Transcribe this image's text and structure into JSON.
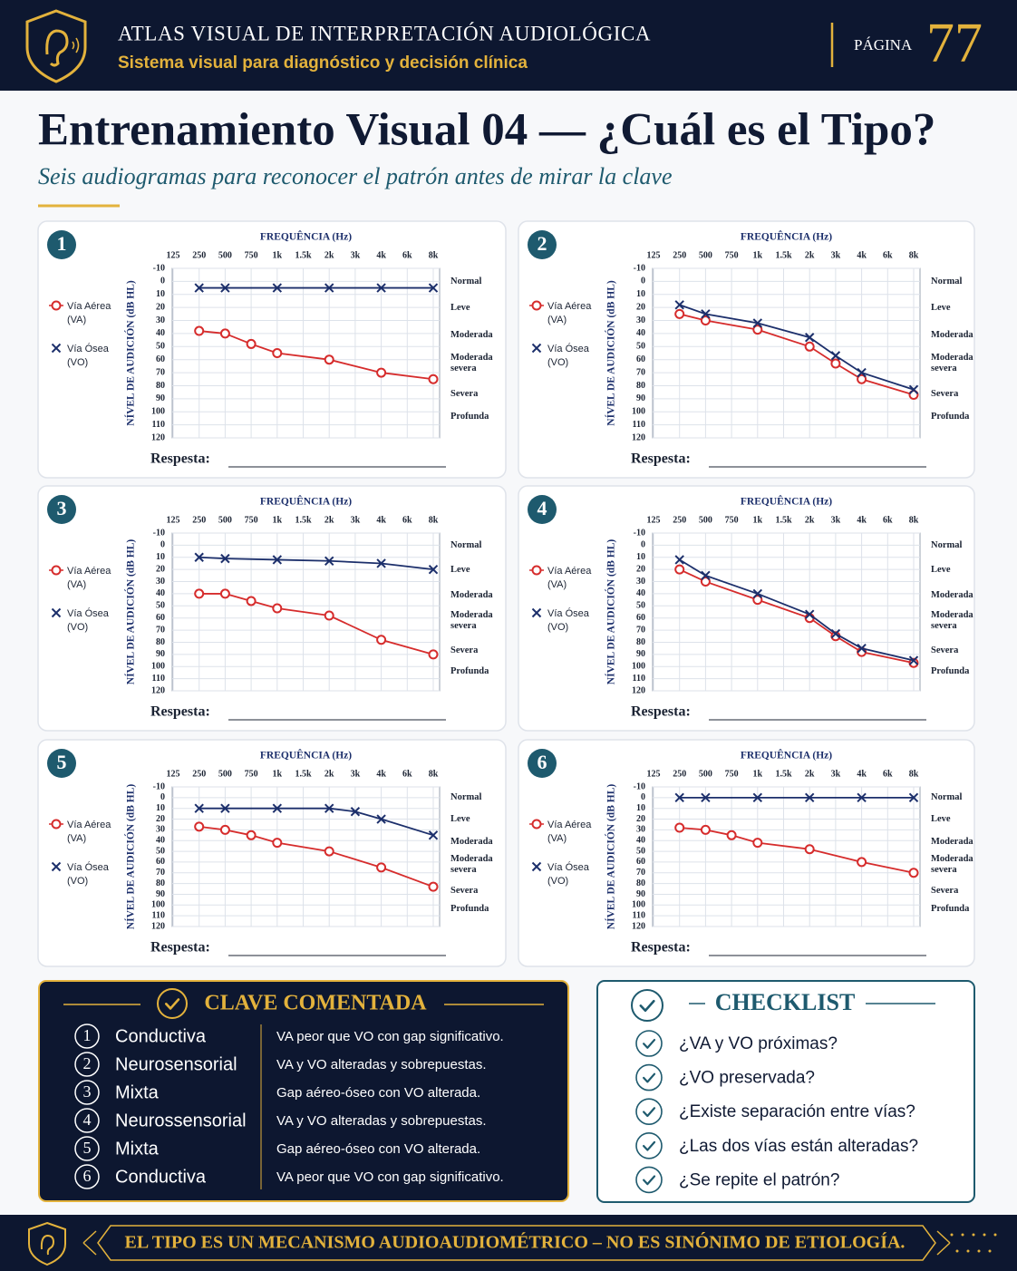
{
  "header": {
    "title": "ATLAS VISUAL DE INTERPRETACIÓN AUDIOLÓGICA",
    "subtitle": "Sistema visual para diagnóstico y decisión clínica",
    "page_label": "PÁGINA",
    "page_number": "77"
  },
  "main": {
    "title": "Entrenamiento Visual 04 — ¿Cuál es el Tipo?",
    "subtitle": "Seis audiogramas para reconocer el patrón antes de mirar la clave"
  },
  "audiogram": {
    "xlabel": "FREQUÊNCIA (Hz)",
    "ylabel": "NÍVEL DE AUDICIÓN (dB HL)",
    "xlim": [
      125,
      8000
    ],
    "xticks": [
      125,
      250,
      500,
      750,
      {
        "value": 1000,
        "label": "1k"
      },
      {
        "value": 1500,
        "label": "1.5k"
      },
      {
        "value": 2000,
        "label": "2k"
      },
      {
        "value": 3000,
        "label": "3k"
      },
      {
        "value": 4000,
        "label": "4k"
      },
      {
        "value": 6000,
        "label": "6k"
      },
      {
        "value": 8000,
        "label": "8k"
      }
    ],
    "ylim": [
      -10,
      120
    ],
    "yticks": [
      -10,
      0,
      10,
      20,
      30,
      40,
      50,
      60,
      70,
      80,
      90,
      100,
      110,
      120
    ],
    "y_inverted": true,
    "grid": true,
    "degree_labels": [
      "Normal",
      "Leve",
      "Moderada",
      "Moderada severa",
      "Severa",
      "Profunda"
    ],
    "answer_label": "Respesta:"
  },
  "chart_data": [
    {
      "type": "line",
      "number": 1,
      "series": [
        {
          "name": "Vía Aérea (VA)",
          "color": "#d62c2c",
          "marker": "o",
          "x": [
            250,
            500,
            750,
            1000,
            2000,
            4000,
            8000
          ],
          "values": [
            38,
            40,
            48,
            55,
            60,
            70,
            75
          ]
        },
        {
          "name": "Vía Ósea (VO)",
          "color": "#1c2f6b",
          "marker": "x",
          "x": [
            250,
            500,
            1000,
            2000,
            4000,
            8000
          ],
          "values": [
            5,
            5,
            5,
            5,
            5,
            5
          ]
        }
      ]
    },
    {
      "type": "line",
      "number": 2,
      "series": [
        {
          "name": "Vía Aérea (VA)",
          "color": "#d62c2c",
          "marker": "o",
          "x": [
            250,
            500,
            1000,
            2000,
            3000,
            4000,
            8000
          ],
          "values": [
            25,
            30,
            37,
            50,
            63,
            75,
            87
          ]
        },
        {
          "name": "Vía Ósea (VO)",
          "color": "#1c2f6b",
          "marker": "x",
          "x": [
            250,
            500,
            1000,
            2000,
            3000,
            4000,
            8000
          ],
          "values": [
            18,
            25,
            32,
            43,
            57,
            70,
            83
          ]
        }
      ]
    },
    {
      "type": "line",
      "number": 3,
      "series": [
        {
          "name": "Vía Aérea (VA)",
          "color": "#d62c2c",
          "marker": "o",
          "x": [
            250,
            500,
            750,
            1000,
            2000,
            4000,
            8000
          ],
          "values": [
            40,
            40,
            46,
            52,
            58,
            78,
            90
          ]
        },
        {
          "name": "Vía Ósea (VO)",
          "color": "#1c2f6b",
          "marker": "x",
          "x": [
            250,
            500,
            1000,
            2000,
            4000,
            8000
          ],
          "values": [
            10,
            11,
            12,
            13,
            15,
            20
          ]
        }
      ]
    },
    {
      "type": "line",
      "number": 4,
      "series": [
        {
          "name": "Vía Aérea (VA)",
          "color": "#d62c2c",
          "marker": "o",
          "x": [
            250,
            500,
            1000,
            2000,
            3000,
            4000,
            8000
          ],
          "values": [
            20,
            30,
            45,
            60,
            75,
            88,
            97
          ]
        },
        {
          "name": "Vía Ósea (VO)",
          "color": "#1c2f6b",
          "marker": "x",
          "x": [
            250,
            500,
            1000,
            2000,
            3000,
            4000,
            8000
          ],
          "values": [
            12,
            25,
            40,
            57,
            73,
            85,
            95
          ]
        }
      ]
    },
    {
      "type": "line",
      "number": 5,
      "series": [
        {
          "name": "Vía Aérea (VA)",
          "color": "#d62c2c",
          "marker": "o",
          "x": [
            250,
            500,
            750,
            1000,
            2000,
            4000,
            8000
          ],
          "values": [
            27,
            30,
            35,
            42,
            50,
            65,
            83
          ]
        },
        {
          "name": "Vía Ósea (VO)",
          "color": "#1c2f6b",
          "marker": "x",
          "x": [
            250,
            500,
            1000,
            2000,
            3000,
            4000,
            8000
          ],
          "values": [
            10,
            10,
            10,
            10,
            13,
            20,
            35
          ]
        }
      ]
    },
    {
      "type": "line",
      "number": 6,
      "series": [
        {
          "name": "Vía Aérea (VA)",
          "color": "#d62c2c",
          "marker": "o",
          "x": [
            250,
            500,
            750,
            1000,
            2000,
            4000,
            8000
          ],
          "values": [
            28,
            30,
            35,
            42,
            48,
            60,
            70
          ]
        },
        {
          "name": "Vía Ósea (VO)",
          "color": "#1c2f6b",
          "marker": "x",
          "x": [
            250,
            500,
            1000,
            2000,
            4000,
            8000
          ],
          "values": [
            0,
            0,
            0,
            0,
            0,
            0
          ]
        }
      ]
    }
  ],
  "key": {
    "title": "CLAVE COMENTADA",
    "items": [
      {
        "number": 1,
        "type": "Conductiva",
        "note": "VA peor que VO con gap significativo."
      },
      {
        "number": 2,
        "type": "Neurosensorial",
        "note": "VA y VO alteradas y sobrepuestas."
      },
      {
        "number": 3,
        "type": "Mixta",
        "note": "Gap aéreo-óseo con VO alterada."
      },
      {
        "number": 4,
        "type": "Neurossensorial",
        "note": "VA y VO alteradas y sobrepuestas."
      },
      {
        "number": 5,
        "type": "Mixta",
        "note": "Gap aéreo-óseo con VO alterada."
      },
      {
        "number": 6,
        "type": "Conductiva",
        "note": "VA peor que VO con gap significativo."
      }
    ]
  },
  "checklist": {
    "title": "CHECKLIST",
    "items": [
      "¿VA y VO próximas?",
      "¿VO preservada?",
      "¿Existe separación entre vías?",
      "¿Las dos vías están alteradas?",
      "¿Se repite el patrón?"
    ]
  },
  "footer": {
    "text": "EL TIPO ES UN MECANISMO AUDIOAUDIOMÉTRICO – NO ES SINÓNIMO DE ETIOLOGÍA."
  }
}
